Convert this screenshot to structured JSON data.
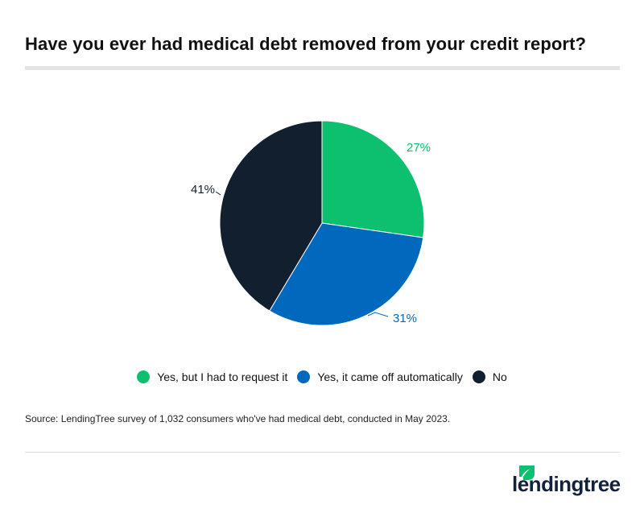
{
  "title": "Have you ever had medical debt removed from your credit report?",
  "chart_data": {
    "type": "pie",
    "title": "Have you ever had medical debt removed from your credit report?",
    "series": [
      {
        "name": "Yes, but I had to request it",
        "value": 27,
        "label": "27%",
        "color": "#0cc06f"
      },
      {
        "name": "Yes, it came off automatically",
        "value": 31,
        "label": "31%",
        "color": "#0068bd"
      },
      {
        "name": "No",
        "value": 41,
        "label": "41%",
        "color": "#121f2f"
      }
    ],
    "start": "top, clockwise",
    "legend": "bottom"
  },
  "source": "Source: LendingTree survey of 1,032 consumers who've had medical debt, conducted in May 2023.",
  "logo": {
    "text": "lendingtree",
    "leaf_color": "#0cc06f"
  }
}
